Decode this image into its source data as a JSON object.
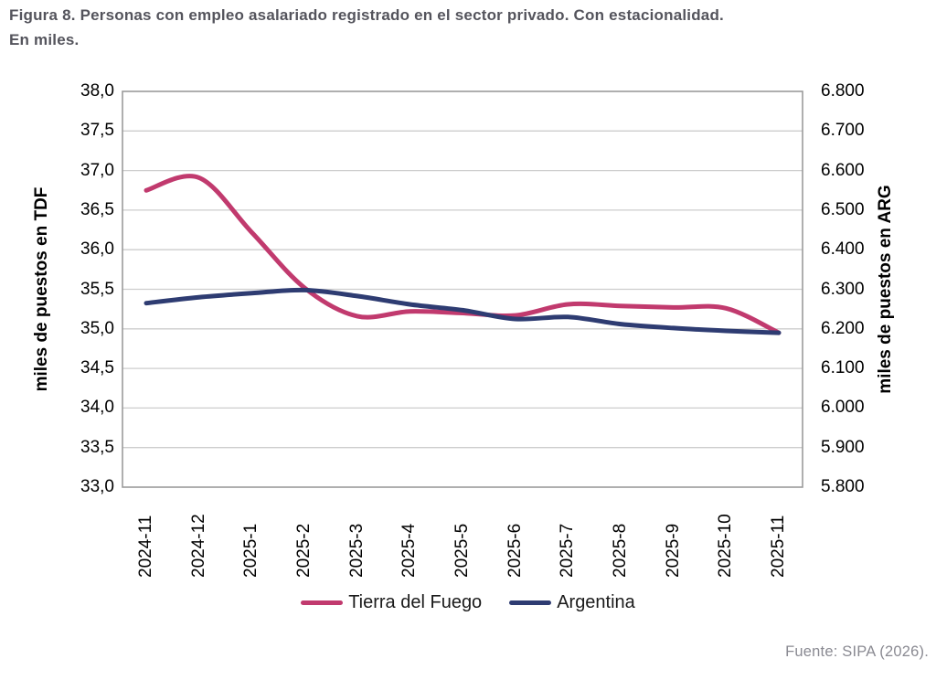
{
  "title": {
    "line1": "Figura 8. Personas con empleo asalariado registrado en el sector privado. Con estacionalidad.",
    "line2": "En miles."
  },
  "source": "Fuente: SIPA (2026).",
  "colors": {
    "tdf_line": "#C13A6E",
    "arg_line": "#2E3C72",
    "title_text": "#54545C",
    "source_text": "#8A8A92",
    "plot_border": "#9B9B9B",
    "gridline": "#CDCDCD",
    "tick_text": "#000000"
  },
  "chart_data": {
    "type": "line",
    "title": "Figura 8. Personas con empleo asalariado registrado en el sector privado. Con estacionalidad. En miles.",
    "categories": [
      "2024-11",
      "2024-12",
      "2025-1",
      "2025-2",
      "2025-3",
      "2025-4",
      "2025-5",
      "2025-6",
      "2025-7",
      "2025-8",
      "2025-9",
      "2025-10",
      "2025-11"
    ],
    "left_axis": {
      "label": "miles de puestos en TDF",
      "min": 33.0,
      "max": 38.0,
      "ticks": [
        "38,0",
        "37,5",
        "37,0",
        "36,5",
        "36,0",
        "35,5",
        "35,0",
        "34,5",
        "34,0",
        "33,5",
        "33,0"
      ]
    },
    "right_axis": {
      "label": "miles de puestos en ARG",
      "min": 5.8,
      "max": 6.8,
      "ticks": [
        "6.800",
        "6.700",
        "6.600",
        "6.500",
        "6.400",
        "6.300",
        "6.200",
        "6.100",
        "6.000",
        "5.900",
        "5.800"
      ]
    },
    "series": [
      {
        "name": "Tierra del Fuego",
        "axis": "left",
        "color": "#C13A6E",
        "values": [
          36.75,
          36.91,
          36.22,
          35.52,
          35.16,
          35.22,
          35.2,
          35.17,
          35.31,
          35.29,
          35.27,
          35.26,
          34.95
        ]
      },
      {
        "name": "Argentina",
        "axis": "right",
        "color": "#2E3C72",
        "values": [
          6.265,
          6.28,
          6.29,
          6.298,
          6.283,
          6.262,
          6.247,
          6.225,
          6.23,
          6.212,
          6.202,
          6.195,
          6.19
        ]
      }
    ],
    "legend_position": "bottom",
    "grid": "horizontal"
  }
}
